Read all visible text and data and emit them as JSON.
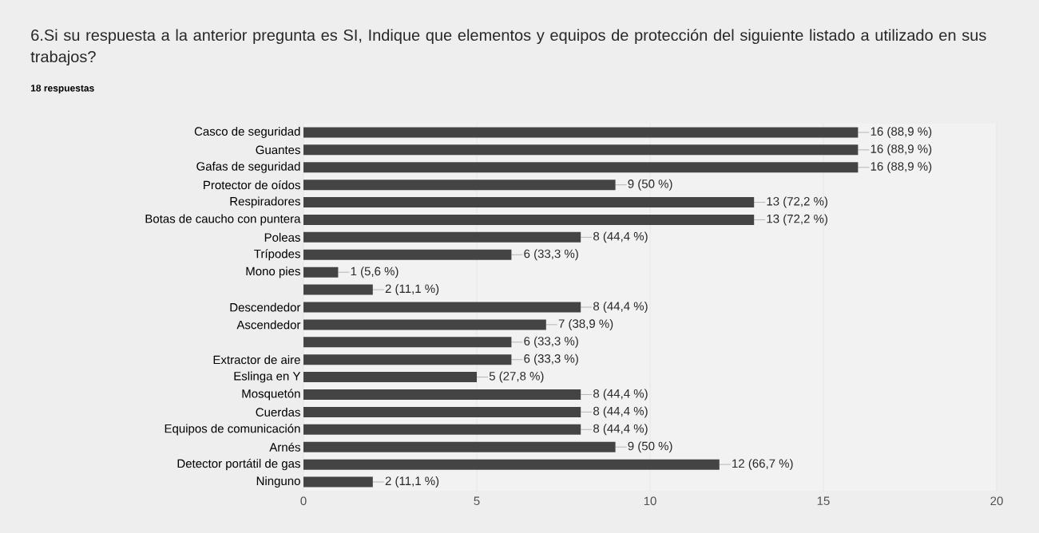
{
  "chart_data": {
    "type": "bar",
    "orientation": "horizontal",
    "title": "6.Si su respuesta a la anterior pregunta es SI, Indique que elementos y equipos de protección del siguiente listado a utilizado en sus trabajos?",
    "subtitle": "18 respuestas",
    "categories": [
      "Casco de seguridad",
      "Guantes",
      "Gafas de seguridad",
      "Protector de oídos",
      "Respiradores",
      "Botas de caucho con puntera",
      "Poleas",
      "Trípodes",
      "Mono pies",
      null,
      "Descendedor",
      "Ascendedor",
      null,
      "Extractor de aire",
      "Eslinga en Y",
      "Mosquetón",
      "Cuerdas",
      "Equipos de comunicación",
      "Arnés",
      "Detector portátil de gas",
      "Ninguno"
    ],
    "values": [
      16,
      16,
      16,
      9,
      13,
      13,
      8,
      6,
      1,
      2,
      8,
      7,
      6,
      6,
      5,
      8,
      8,
      8,
      9,
      12,
      2
    ],
    "value_labels": [
      "16 (88,9 %)",
      "16 (88,9 %)",
      "16 (88,9 %)",
      "9 (50 %)",
      "13 (72,2 %)",
      "13 (72,2 %)",
      "8 (44,4 %)",
      "6 (33,3 %)",
      "1 (5,6 %)",
      "2 (11,1 %)",
      "8 (44,4 %)",
      "7 (38,9 %)",
      "6 (33,3 %)",
      "6 (33,3 %)",
      "5 (27,8 %)",
      "8 (44,4 %)",
      "8 (44,4 %)",
      "8 (44,4 %)",
      "9 (50 %)",
      "12 (66,7 %)",
      "2 (11,1 %)"
    ],
    "color": "#444444",
    "xlim": [
      0,
      20
    ],
    "xticks": [
      0,
      5,
      10,
      15,
      20
    ],
    "grid": "x"
  }
}
